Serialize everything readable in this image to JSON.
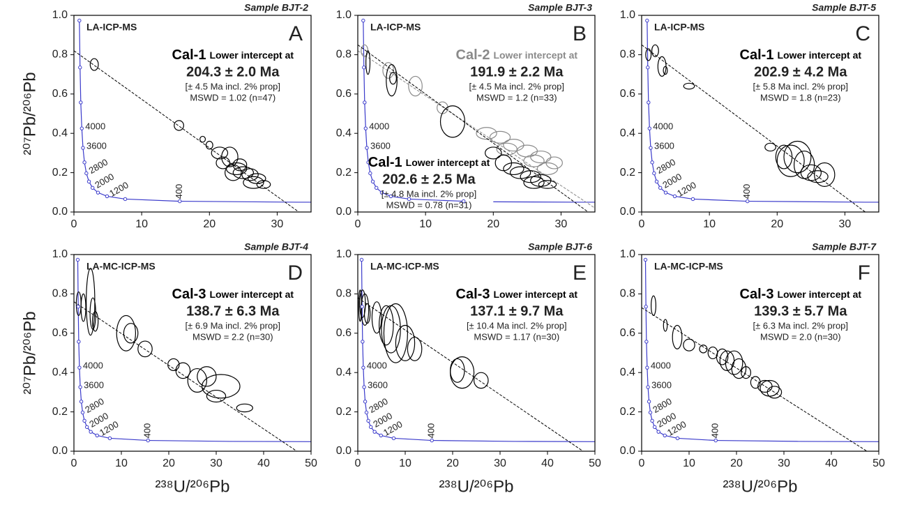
{
  "chart_data": [
    {
      "type": "scatter",
      "title": "Sample BJT-2",
      "panel": "A",
      "method": "LA-ICP-MS",
      "y_label": "²⁰⁷Pb/²⁰⁶Pb",
      "xlim": [
        0,
        35
      ],
      "xticks": [
        0,
        10,
        20,
        30
      ],
      "ylim": [
        0,
        1
      ],
      "yticks": [
        {
          "value": 0,
          "label": "0.0"
        },
        0.2,
        0.4,
        0.6,
        0.8,
        {
          "value": 1,
          "label": "1.0"
        }
      ],
      "series": [
        {
          "name": "Cal-1",
          "color": "#000000",
          "label": "Lower intercept at",
          "age": "204.3 ± 2.0 Ma",
          "note": "[± 4.5 Ma incl. 2% prop]",
          "mswd": "MSWD = 1.02 (n=47)",
          "x": [
            3,
            15.5,
            19,
            20,
            21.5,
            23,
            22,
            24,
            25,
            26,
            27,
            28,
            24.5,
            26.5,
            23.5
          ],
          "values": [
            0.75,
            0.44,
            0.37,
            0.34,
            0.3,
            0.28,
            0.25,
            0.22,
            0.2,
            0.19,
            0.17,
            0.14,
            0.24,
            0.15,
            0.2
          ],
          "x_err": [
            0.6,
            0.7,
            0.4,
            0.5,
            1.2,
            1.2,
            1,
            1.5,
            1.5,
            1.2,
            1.3,
            1,
            1,
            1.5,
            1.2
          ],
          "y_err": [
            0.03,
            0.025,
            0.015,
            0.02,
            0.03,
            0.05,
            0.03,
            0.03,
            0.03,
            0.03,
            0.025,
            0.02,
            0.03,
            0.03,
            0.04
          ],
          "discordia": {
            "x": [
              0,
              33.2
            ],
            "y": [
              0.82,
              0
            ]
          }
        }
      ],
      "concordia": {
        "color": "#3a3acb",
        "x": [
          0.806,
          0.9046,
          1.0106,
          1.163,
          1.337,
          1.556,
          1.838,
          2.217,
          2.749,
          3.549,
          4.888,
          7.568,
          15.62
        ],
        "y": [
          0.9735,
          0.735,
          0.557,
          0.4249,
          0.3261,
          0.2524,
          0.1968,
          0.1548,
          0.123,
          0.0987,
          0.0801,
          0.0658,
          0.0547
        ],
        "labels": [
          null,
          null,
          null,
          "4000",
          "3600",
          null,
          "2800",
          null,
          "2000",
          null,
          "1200",
          null,
          "400"
        ],
        "tail_x": [
          15.62,
          33,
          50
        ],
        "tail_y": [
          0.0547,
          0.04995,
          0.0486
        ]
      }
    },
    {
      "type": "scatter",
      "title": "Sample BJT-3",
      "panel": "B",
      "method": "LA-ICP-MS",
      "xlim": [
        0,
        35
      ],
      "xticks": [
        0,
        10,
        20,
        30
      ],
      "ylim": [
        0,
        1
      ],
      "yticks": [
        {
          "value": 0,
          "label": "0.0"
        },
        0.2,
        0.4,
        0.6,
        0.8,
        {
          "value": 1,
          "label": "1.0"
        }
      ],
      "series": [
        {
          "name": "Cal-2",
          "color": "#8a8a8a",
          "label": "Lower intercept at",
          "age": "191.9 ± 2.2 Ma",
          "note": "[± 4.5 Ma incl. 2% prop]",
          "mswd": "MSWD = 1.2 (n=33)",
          "x": [
            1,
            4.5,
            8.5,
            12.5,
            19,
            21,
            23,
            25,
            27,
            29,
            22,
            26,
            28
          ],
          "values": [
            0.82,
            0.72,
            0.64,
            0.53,
            0.4,
            0.38,
            0.34,
            0.31,
            0.28,
            0.25,
            0.32,
            0.26,
            0.22
          ],
          "x_err": [
            0.5,
            0.8,
            1,
            0.8,
            1.5,
            1.5,
            1.5,
            1.5,
            1.5,
            1.2,
            1.5,
            1.5,
            1.5
          ],
          "y_err": [
            0.03,
            0.04,
            0.05,
            0.03,
            0.03,
            0.03,
            0.03,
            0.03,
            0.03,
            0.03,
            0.03,
            0.03,
            0.03
          ],
          "discordia": {
            "x": [
              0,
              35
            ],
            "y": [
              0.82,
              0.02
            ]
          }
        },
        {
          "name": "Cal-1",
          "color": "#000000",
          "label": "Lower intercept at",
          "age": "202.6 ± 2.5 Ma",
          "note": "[± 4.8 Ma incl. 2% prop]",
          "mswd": "MSWD = 0.78 (n=31)",
          "x": [
            1.5,
            5,
            5.2,
            14,
            20,
            21.5,
            23,
            24,
            25.5,
            27,
            28,
            26
          ],
          "values": [
            0.76,
            0.67,
            0.68,
            0.46,
            0.3,
            0.25,
            0.22,
            0.2,
            0.18,
            0.16,
            0.14,
            0.15
          ],
          "x_err": [
            0.3,
            0.8,
            0.5,
            1.8,
            1.2,
            1.2,
            1.5,
            1.5,
            1.5,
            1.5,
            1.3,
            1.5
          ],
          "y_err": [
            0.06,
            0.08,
            0.03,
            0.08,
            0.03,
            0.04,
            0.03,
            0.03,
            0.03,
            0.03,
            0.02,
            0.03
          ],
          "discordia": {
            "x": [
              0,
              34
            ],
            "y": [
              0.85,
              0
            ]
          }
        }
      ],
      "concordia": {
        "color": "#3a3acb",
        "x": [
          0.806,
          0.9046,
          1.0106,
          1.163,
          1.337,
          1.556,
          1.838,
          2.217,
          2.749,
          3.549,
          4.888,
          7.568,
          15.62
        ],
        "y": [
          0.9735,
          0.735,
          0.557,
          0.4249,
          0.3261,
          0.2524,
          0.1968,
          0.1548,
          0.123,
          0.0987,
          0.0801,
          0.0658,
          0.0547
        ],
        "labels": [
          null,
          null,
          null,
          "4000",
          "3600",
          null,
          null,
          null,
          null,
          null,
          null,
          null,
          null
        ],
        "tail_x": [
          20,
          33,
          50
        ],
        "tail_y": [
          0.0518,
          0.04995,
          0.0486
        ]
      }
    },
    {
      "type": "scatter",
      "title": "Sample BJT-5",
      "panel": "C",
      "method": "LA-ICP-MS",
      "xlim": [
        0,
        35
      ],
      "xticks": [
        0,
        10,
        20,
        30
      ],
      "ylim": [
        0,
        1
      ],
      "yticks": [
        {
          "value": 0,
          "label": "0.0"
        },
        0.2,
        0.4,
        0.6,
        0.8,
        {
          "value": 1,
          "label": "1.0"
        }
      ],
      "series": [
        {
          "name": "Cal-1",
          "color": "#000000",
          "label": "Lower intercept at",
          "age": "202.9 ± 4.2 Ma",
          "note": "[± 5.8 Ma incl. 2% prop]",
          "mswd": "MSWD = 1.8 (n=23)",
          "x": [
            1,
            2,
            3,
            3.5,
            7,
            19,
            21,
            22,
            23,
            24,
            25,
            26,
            27
          ],
          "values": [
            0.8,
            0.82,
            0.74,
            0.72,
            0.64,
            0.33,
            0.28,
            0.26,
            0.28,
            0.24,
            0.2,
            0.18,
            0.19
          ],
          "x_err": [
            0.4,
            0.5,
            0.6,
            0.3,
            0.8,
            0.8,
            1.2,
            2,
            2,
            1.5,
            1.5,
            1.5,
            1.5
          ],
          "y_err": [
            0.03,
            0.03,
            0.05,
            0.02,
            0.015,
            0.02,
            0.06,
            0.08,
            0.08,
            0.07,
            0.04,
            0.03,
            0.06
          ],
          "discordia": {
            "x": [
              0,
              33
            ],
            "y": [
              0.85,
              0
            ]
          }
        }
      ],
      "concordia": {
        "color": "#3a3acb",
        "x": [
          0.806,
          0.9046,
          1.0106,
          1.163,
          1.337,
          1.556,
          1.838,
          2.217,
          2.749,
          3.549,
          4.888,
          7.568,
          15.62
        ],
        "y": [
          0.9735,
          0.735,
          0.557,
          0.4249,
          0.3261,
          0.2524,
          0.1968,
          0.1548,
          0.123,
          0.0987,
          0.0801,
          0.0658,
          0.0547
        ],
        "labels": [
          null,
          null,
          null,
          "4000",
          "3600",
          null,
          "2800",
          null,
          "2000",
          null,
          "1200",
          null,
          "400"
        ],
        "tail_x": [
          15.62,
          33,
          50
        ],
        "tail_y": [
          0.0547,
          0.04995,
          0.0486
        ]
      }
    },
    {
      "type": "scatter",
      "title": "Sample BJT-4",
      "panel": "D",
      "method": "LA-MC-ICP-MS",
      "y_label": "²⁰⁷Pb/²⁰⁶Pb",
      "x_label": "²³⁸U/²⁰⁶Pb",
      "xlim": [
        0,
        50
      ],
      "xticks": [
        0,
        10,
        20,
        30,
        40,
        50
      ],
      "ylim": [
        0,
        1
      ],
      "yticks": [
        {
          "value": 0,
          "label": "0.0"
        },
        0.2,
        0.4,
        0.6,
        0.8,
        {
          "value": 1,
          "label": "1.0"
        }
      ],
      "series": [
        {
          "name": "Cal-3",
          "color": "#000000",
          "label": "Lower intercept at",
          "age": "138.7 ± 6.3 Ma",
          "note": "[± 6.9 Ma incl. 2% prop]",
          "mswd": "MSWD = 2.2 (n=30)",
          "x": [
            1,
            2,
            3.5,
            4,
            4.5,
            11,
            12,
            15,
            21,
            23,
            26,
            28,
            31,
            30,
            36
          ],
          "values": [
            0.75,
            0.73,
            0.76,
            0.7,
            0.66,
            0.6,
            0.6,
            0.52,
            0.44,
            0.41,
            0.36,
            0.38,
            0.33,
            0.28,
            0.22
          ],
          "x_err": [
            0.5,
            0.5,
            0.9,
            0.6,
            0.6,
            2,
            1.5,
            1.5,
            1.2,
            1.5,
            2,
            2,
            4,
            2,
            1.7
          ],
          "y_err": [
            0.06,
            0.07,
            0.17,
            0.08,
            0.05,
            0.09,
            0.05,
            0.04,
            0.03,
            0.04,
            0.06,
            0.05,
            0.06,
            0.03,
            0.02
          ],
          "discordia": {
            "x": [
              0,
              47
            ],
            "y": [
              0.76,
              0
            ]
          }
        }
      ],
      "concordia": {
        "color": "#3a3acb",
        "x": [
          0.806,
          0.9046,
          1.0106,
          1.163,
          1.337,
          1.556,
          1.838,
          2.217,
          2.749,
          3.549,
          4.888,
          7.568,
          15.62
        ],
        "y": [
          0.9735,
          0.735,
          0.557,
          0.4249,
          0.3261,
          0.2524,
          0.1968,
          0.1548,
          0.123,
          0.0987,
          0.0801,
          0.0658,
          0.0547
        ],
        "labels": [
          null,
          null,
          null,
          "4000",
          "3600",
          null,
          "2800",
          null,
          "2000",
          null,
          "1200",
          null,
          "400"
        ],
        "tail_x": [
          15.62,
          33,
          50
        ],
        "tail_y": [
          0.0547,
          0.04995,
          0.0486
        ]
      }
    },
    {
      "type": "scatter",
      "title": "Sample BJT-6",
      "panel": "E",
      "method": "LA-MC-ICP-MS",
      "x_label": "²³⁸U/²⁰⁶Pb",
      "xlim": [
        0,
        50
      ],
      "xticks": [
        0,
        10,
        20,
        30,
        40,
        50
      ],
      "ylim": [
        0,
        1
      ],
      "yticks": [
        {
          "value": 0,
          "label": "0.0"
        },
        0.2,
        0.4,
        0.6,
        0.8,
        {
          "value": 1,
          "label": "1.0"
        }
      ],
      "series": [
        {
          "name": "Cal-3",
          "color": "#000000",
          "label": "Lower intercept at",
          "age": "137.1 ± 9.7 Ma",
          "note": "[± 10.4 Ma incl. 2% prop]",
          "mswd": "MSWD = 1.17 (n=30)",
          "x": [
            0.5,
            1,
            1.5,
            2,
            4,
            6,
            7,
            8,
            10,
            12,
            21,
            22,
            26
          ],
          "values": [
            0.74,
            0.75,
            0.72,
            0.7,
            0.68,
            0.64,
            0.62,
            0.6,
            0.55,
            0.52,
            0.41,
            0.4,
            0.36
          ],
          "x_err": [
            0.3,
            0.6,
            0.8,
            0.6,
            1,
            1.5,
            2,
            2.5,
            2,
            1.5,
            1.5,
            2.5,
            1.5
          ],
          "y_err": [
            0.08,
            0.07,
            0.08,
            0.05,
            0.08,
            0.1,
            0.12,
            0.15,
            0.09,
            0.06,
            0.06,
            0.08,
            0.04
          ],
          "discordia": {
            "x": [
              0,
              47.5
            ],
            "y": [
              0.78,
              0
            ]
          }
        }
      ],
      "concordia": {
        "color": "#3a3acb",
        "x": [
          0.806,
          0.9046,
          1.0106,
          1.163,
          1.337,
          1.556,
          1.838,
          2.217,
          2.749,
          3.549,
          4.888,
          7.568,
          15.62
        ],
        "y": [
          0.9735,
          0.735,
          0.557,
          0.4249,
          0.3261,
          0.2524,
          0.1968,
          0.1548,
          0.123,
          0.0987,
          0.0801,
          0.0658,
          0.0547
        ],
        "labels": [
          null,
          null,
          null,
          "4000",
          "3600",
          null,
          "2800",
          null,
          "2000",
          null,
          "1200",
          null,
          "400"
        ],
        "tail_x": [
          15.62,
          33,
          50
        ],
        "tail_y": [
          0.0547,
          0.04995,
          0.0486
        ]
      }
    },
    {
      "type": "scatter",
      "title": "Sample BJT-7",
      "panel": "F",
      "method": "LA-MC-ICP-MS",
      "x_label": "²³⁸U/²⁰⁶Pb",
      "xlim": [
        0,
        50
      ],
      "xticks": [
        0,
        10,
        20,
        30,
        40,
        50
      ],
      "ylim": [
        0,
        1
      ],
      "yticks": [
        {
          "value": 0,
          "label": "0.0"
        },
        0.2,
        0.4,
        0.6,
        0.8,
        {
          "value": 1,
          "label": "1.0"
        }
      ],
      "series": [
        {
          "name": "Cal-3",
          "color": "#000000",
          "label": "Lower intercept at",
          "age": "139.3 ± 5.7 Ma",
          "note": "[± 6.3 Ma incl. 2% prop]",
          "mswd": "MSWD = 2.0 (n=30)",
          "x": [
            2.5,
            5,
            7.5,
            10,
            13,
            15,
            17,
            18,
            19.5,
            20.5,
            22,
            24,
            26,
            27,
            28
          ],
          "values": [
            0.74,
            0.64,
            0.58,
            0.54,
            0.52,
            0.5,
            0.48,
            0.46,
            0.45,
            0.42,
            0.4,
            0.35,
            0.33,
            0.32,
            0.3
          ],
          "x_err": [
            0.5,
            0.4,
            1,
            1.2,
            0.8,
            1,
            1.2,
            1.5,
            1.8,
            1.5,
            1,
            1,
            1.5,
            2,
            1.5
          ],
          "y_err": [
            0.05,
            0.03,
            0.06,
            0.03,
            0.02,
            0.03,
            0.04,
            0.05,
            0.06,
            0.05,
            0.03,
            0.03,
            0.03,
            0.04,
            0.03
          ],
          "discordia": {
            "x": [
              0,
              47.5
            ],
            "y": [
              0.73,
              0
            ]
          }
        }
      ],
      "concordia": {
        "color": "#3a3acb",
        "x": [
          0.806,
          0.9046,
          1.0106,
          1.163,
          1.337,
          1.556,
          1.838,
          2.217,
          2.749,
          3.549,
          4.888,
          7.568,
          15.62
        ],
        "y": [
          0.9735,
          0.735,
          0.557,
          0.4249,
          0.3261,
          0.2524,
          0.1968,
          0.1548,
          0.123,
          0.0987,
          0.0801,
          0.0658,
          0.0547
        ],
        "labels": [
          null,
          null,
          null,
          "4000",
          "3600",
          null,
          "2800",
          null,
          "2000",
          null,
          "1200",
          null,
          "400"
        ],
        "tail_x": [
          15.62,
          33,
          50
        ],
        "tail_y": [
          0.0547,
          0.04995,
          0.0486
        ]
      }
    }
  ]
}
